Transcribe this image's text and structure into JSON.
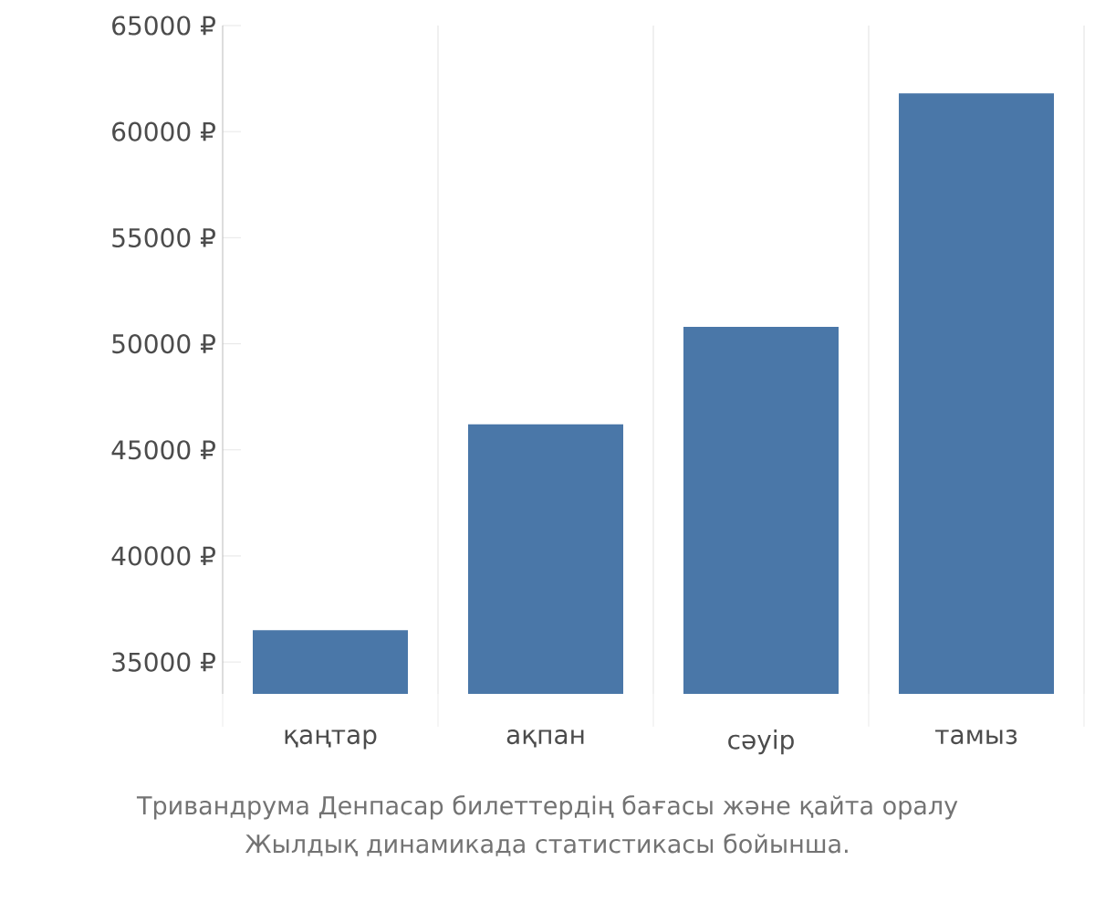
{
  "chart_data": {
    "type": "bar",
    "categories": [
      "қаңтар",
      "ақпан",
      "сәуір",
      "тамыз"
    ],
    "values": [
      36500,
      46200,
      50800,
      61800
    ],
    "color": "#4a77a8",
    "ylim": [
      33500,
      65000
    ],
    "yticks": [
      {
        "value": 35000,
        "label": "35000 ₽"
      },
      {
        "value": 40000,
        "label": "40000 ₽"
      },
      {
        "value": 45000,
        "label": "45000 ₽"
      },
      {
        "value": 50000,
        "label": "50000 ₽"
      },
      {
        "value": 55000,
        "label": "55000 ₽"
      },
      {
        "value": 60000,
        "label": "60000 ₽"
      },
      {
        "value": 65000,
        "label": "65000 ₽"
      }
    ],
    "grid": "x",
    "annotations": [
      "Тривандрума Денпасар билеттердің бағасы және қайта оралу",
      "Жылдық динамикада статистикасы бойынша."
    ]
  }
}
